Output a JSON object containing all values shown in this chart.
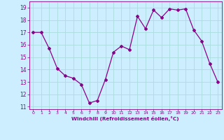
{
  "x": [
    0,
    1,
    2,
    3,
    4,
    5,
    6,
    7,
    8,
    9,
    10,
    11,
    12,
    13,
    14,
    15,
    16,
    17,
    18,
    19,
    20,
    21,
    22,
    23
  ],
  "y": [
    17.0,
    17.0,
    15.7,
    14.1,
    13.5,
    13.3,
    12.8,
    11.3,
    11.5,
    13.2,
    15.4,
    15.9,
    15.6,
    18.3,
    17.3,
    18.8,
    18.2,
    18.9,
    18.8,
    18.9,
    17.2,
    16.3,
    14.5,
    13.0
  ],
  "line_color": "#8B008B",
  "marker": "D",
  "marker_size": 2.0,
  "bg_color": "#cceeff",
  "grid_color": "#aadddd",
  "xlabel": "Windchill (Refroidissement éolien,°C)",
  "xlabel_color": "#8B008B",
  "tick_color": "#8B008B",
  "ylim": [
    10.8,
    19.5
  ],
  "yticks": [
    11,
    12,
    13,
    14,
    15,
    16,
    17,
    18,
    19
  ],
  "xlim": [
    -0.5,
    23.5
  ],
  "xticks": [
    0,
    1,
    2,
    3,
    4,
    5,
    6,
    7,
    8,
    9,
    10,
    11,
    12,
    13,
    14,
    15,
    16,
    17,
    18,
    19,
    20,
    21,
    22,
    23
  ]
}
